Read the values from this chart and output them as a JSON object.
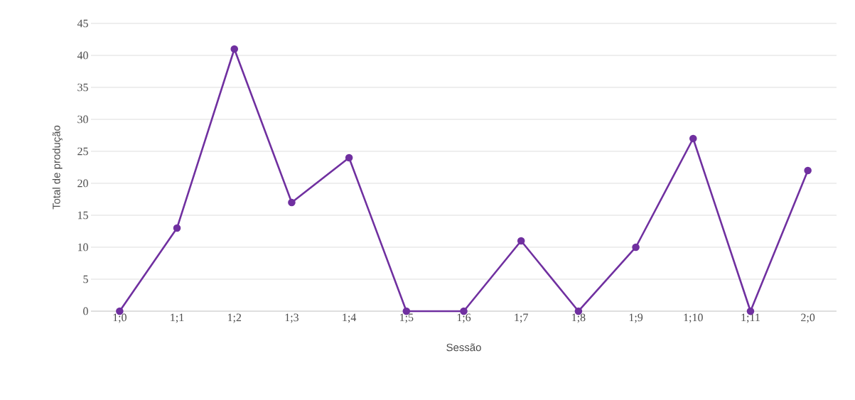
{
  "chart_data": {
    "type": "line",
    "xlabel": "Sessão",
    "ylabel": "Total de produção",
    "categories": [
      "1;0",
      "1;1",
      "1;2",
      "1;3",
      "1;4",
      "1;5",
      "1;6",
      "1;7",
      "1;8",
      "1;9",
      "1;10",
      "1;11",
      "2;0"
    ],
    "series": [
      {
        "color": "#7030a0",
        "values": [
          0,
          13,
          41,
          17,
          24,
          0,
          0,
          11,
          0,
          10,
          27,
          0,
          22
        ]
      }
    ],
    "ylim": [
      0,
      45
    ],
    "yticks": [
      0,
      5,
      10,
      15,
      20,
      25,
      30,
      35,
      40,
      45
    ],
    "grid": "y",
    "marker": "circle",
    "line_style": "solid"
  }
}
